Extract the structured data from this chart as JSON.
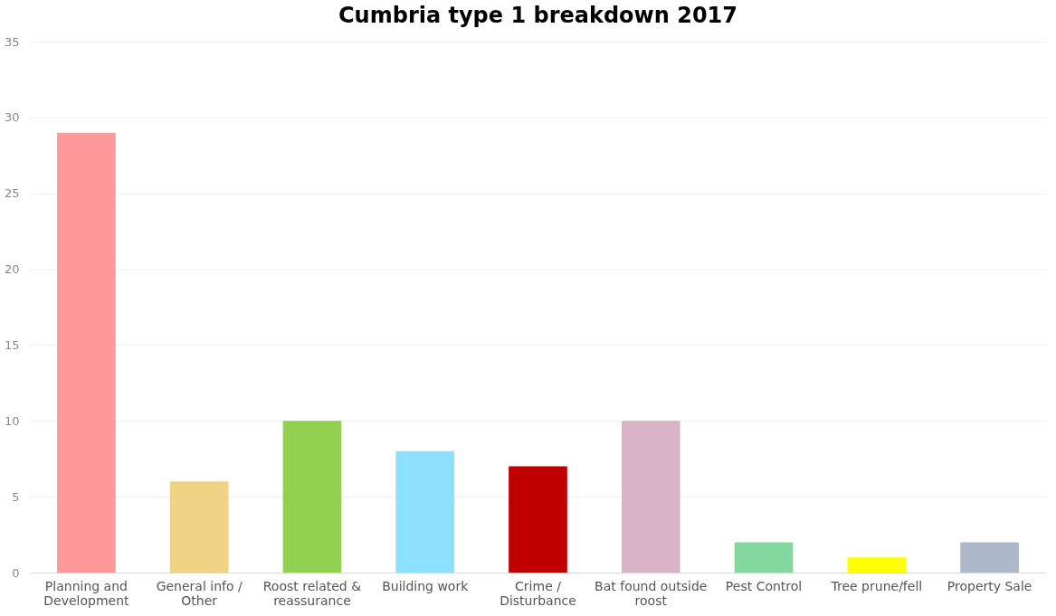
{
  "chart_data": {
    "type": "bar",
    "title": "Cumbria type 1 breakdown 2017",
    "categories": [
      "Planning and\nDevelopment",
      "General info /\nOther",
      "Roost related  &\nreassurance",
      "Building work",
      "Crime /\nDisturbance",
      "Bat found outside\nroost",
      "Pest Control",
      "Tree prune/fell",
      "Property Sale"
    ],
    "values": [
      29,
      6,
      10,
      8,
      7,
      10,
      2,
      1,
      2
    ],
    "colors": [
      "#ff9999",
      "#f0d285",
      "#92d050",
      "#8ee0ff",
      "#c00000",
      "#d9b3c6",
      "#85d8a0",
      "#ffff00",
      "#adb9ca"
    ],
    "ylim": [
      0,
      35
    ],
    "yticks": [
      0,
      5,
      10,
      15,
      20,
      25,
      30,
      35
    ],
    "grid": "y"
  }
}
